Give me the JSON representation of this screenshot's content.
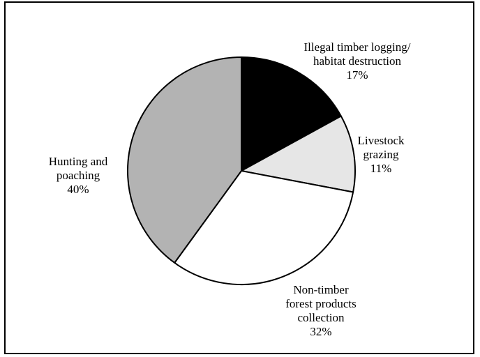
{
  "chart_data": {
    "type": "pie",
    "title": "",
    "start_angle_deg": 0,
    "direction": "clockwise",
    "slices": [
      {
        "label_lines": [
          "Illegal timber logging/",
          "habitat destruction"
        ],
        "percent_label": "17%",
        "value": 17,
        "color": "#000000"
      },
      {
        "label_lines": [
          "Livestock",
          "grazing"
        ],
        "percent_label": "11%",
        "value": 11,
        "color": "#e6e6e6"
      },
      {
        "label_lines": [
          "Non-timber",
          "forest products",
          "collection"
        ],
        "percent_label": "32%",
        "value": 32,
        "color": "#ffffff"
      },
      {
        "label_lines": [
          "Hunting and",
          "poaching"
        ],
        "percent_label": "40%",
        "value": 40,
        "color": "#b3b3b3"
      }
    ]
  }
}
